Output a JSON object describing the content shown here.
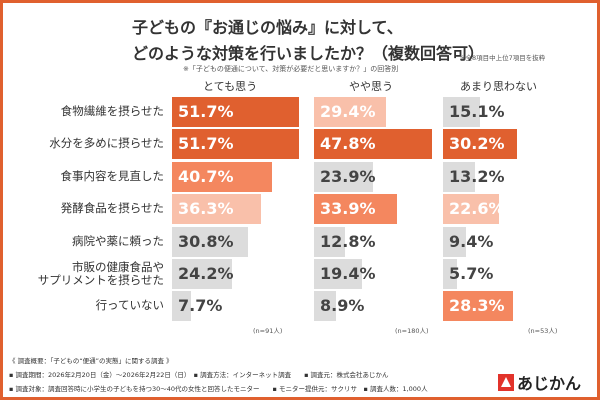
{
  "chart_data": {
    "type": "bar",
    "orientation": "horizontal",
    "title": "子どもの『お通じの悩み』に対して、",
    "title_line2": "どのような対策を行いましたか？（複数回答可）",
    "note_top": "※全8項目中上位7項目を抜粋",
    "subtitle": "※「子どもの便通について、対策が必要だと思いますか？」の回答別",
    "categories": [
      "食物繊維を摂らせた",
      "水分を多めに摂らせた",
      "食事内容を見直した",
      "発酵食品を摂らせた",
      "病院や薬に頼った",
      "市販の健康食品や\nサプリメントを摂らせた",
      "行っていない"
    ],
    "series": [
      {
        "name": "とても思う",
        "n": "(n=91人)",
        "values": [
          51.7,
          51.7,
          40.7,
          36.3,
          30.8,
          24.2,
          7.7
        ],
        "ranks": [
          "top",
          "top",
          "second",
          "third",
          "other",
          "other",
          "other"
        ]
      },
      {
        "name": "やや思う",
        "n": "(n=180人)",
        "values": [
          29.4,
          47.8,
          23.9,
          33.9,
          12.8,
          19.4,
          8.9
        ],
        "ranks": [
          "third",
          "top",
          "other",
          "second",
          "other",
          "other",
          "other"
        ]
      },
      {
        "name": "あまり思わない",
        "n": "(n=53人)",
        "values": [
          15.1,
          30.2,
          13.2,
          22.6,
          9.4,
          5.7,
          28.3
        ],
        "ranks": [
          "other",
          "top",
          "other",
          "third",
          "other",
          "other",
          "second"
        ]
      }
    ],
    "value_suffix": "%",
    "colors": {
      "top": "#E0602F",
      "second": "#F4875F",
      "third": "#F9C0AA",
      "other": "#DCDCDC",
      "frame": "#E0602F"
    },
    "grid": false
  },
  "footer": {
    "line1": "《 調査概要：「子どもの“便通”の実態」に関する調査 》",
    "line2": "▪ 調査期間：2026年2月20日（金）～2026年2月22日（日）　▪ 調査方法：インターネット調査　　▪ 調査元：株式会社あじかん",
    "line3": "▪ 調査対象：調査回答時に小学生の子どもを持つ30～40代の女性と回答したモニター　　▪ モニター提供元：サクリサ　▪ 調査人数：1,000人"
  },
  "logo": {
    "text": "あじかん"
  }
}
